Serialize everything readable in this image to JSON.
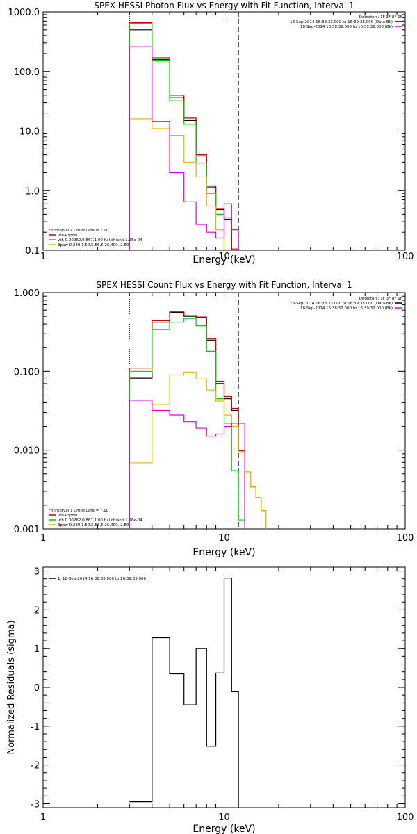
{
  "chart_data": [
    {
      "type": "line",
      "title": "SPEX HESSI Photon Flux vs Energy with Fit Function, Interval 1",
      "xlabel": "Energy (keV)",
      "ylabel": "",
      "x_scale": "log",
      "y_scale": "log",
      "xlim": [
        1,
        100
      ],
      "ylim": [
        0.1,
        1000
      ],
      "x_ticks": [
        1,
        10,
        100
      ],
      "x_tick_labels": [
        "1",
        "10",
        "100"
      ],
      "y_ticks": [
        0.1,
        1,
        10,
        100,
        1000
      ],
      "y_tick_labels": [
        "0.1",
        "1.0",
        "10.0",
        "100.0",
        "1000.0"
      ],
      "vlines": [
        {
          "x": 3.0,
          "style": "dotted"
        },
        {
          "x": 12.0,
          "style": "dashed"
        }
      ],
      "header": {
        "detectors": "Detectors: 1F 3F 8F 9F",
        "entries": [
          {
            "text": "18-Sep-2014 16:38:33.000 to 16:39:33.000 (Data-Bk)",
            "color": "#000000"
          },
          {
            "text": "18-Sep-2014 16:38:32.000 to 16:39:32.000 (Bk)",
            "color": "#e000e0"
          }
        ]
      },
      "legend": {
        "title": "Fit Interval 1    Chi-square = 7.10",
        "entries": [
          {
            "text": "vth+3pow",
            "color": "#cc0000"
          },
          {
            "text": "vth 0.00262,0.867,1.00   full chianti 1.26e-04",
            "color": "#00cc00"
          },
          {
            "text": "3pow 0.289,1.50,5.56,5.26,400.,2.50",
            "color": "#e6b800"
          }
        ]
      },
      "bin_edges": [
        3.0,
        4.0,
        5.0,
        6.0,
        7.0,
        8.0,
        9.0,
        10.0,
        11.0,
        12.0
      ],
      "series": [
        {
          "name": "Data-Bk",
          "color": "#000000",
          "values": [
            500,
            160,
            37,
            15,
            3.8,
            1.15,
            0.48,
            0.33,
            0.1
          ]
        },
        {
          "name": "vth+3pow",
          "color": "#cc0000",
          "values": [
            660,
            170,
            40,
            16.5,
            4.0,
            1.2,
            0.5,
            0.35,
            0.105
          ]
        },
        {
          "name": "vth",
          "color": "#00cc00",
          "values": [
            640,
            150,
            32,
            13,
            2.9,
            0.9,
            0.4,
            0.1,
            0.09
          ]
        },
        {
          "name": "3pow",
          "color": "#e6b800",
          "values": [
            16,
            11,
            8.5,
            3.0,
            1.7,
            0.55,
            0.22,
            0.1,
            0.1
          ]
        },
        {
          "name": "Bk",
          "color": "#e000e0",
          "values": [
            260,
            14.5,
            2.0,
            0.65,
            0.27,
            0.2,
            0.16,
            0.6,
            0.22
          ]
        }
      ]
    },
    {
      "type": "line",
      "title": "SPEX HESSI Count Flux vs Energy with Fit Function, Interval 1",
      "xlabel": "Energy (keV)",
      "ylabel": "",
      "x_scale": "log",
      "y_scale": "log",
      "xlim": [
        1,
        100
      ],
      "ylim": [
        0.001,
        1
      ],
      "x_ticks": [
        1,
        10,
        100
      ],
      "x_tick_labels": [
        "1",
        "10",
        "100"
      ],
      "y_ticks": [
        0.001,
        0.01,
        0.1,
        1
      ],
      "y_tick_labels": [
        "0.001",
        "0.010",
        "0.100",
        "1.000"
      ],
      "vlines": [
        {
          "x": 3.0,
          "style": "dotted"
        },
        {
          "x": 12.0,
          "style": "dashed"
        }
      ],
      "header": {
        "detectors": "Detectors: 1F 3F 8F 9F",
        "entries": [
          {
            "text": "18-Sep-2014 16:38:33.000 to 16:39:33.000 (Data-Bk)",
            "color": "#000000"
          },
          {
            "text": "18-Sep-2014 16:38:32.000 to 16:39:32.000 (Bk)",
            "color": "#e000e0"
          }
        ]
      },
      "legend": {
        "title": "Fit Interval 1    Chi-square = 7.10",
        "entries": [
          {
            "text": "vth+3pow",
            "color": "#cc0000"
          },
          {
            "text": "vth 0.00262,0.867,1.00   full chianti 1.26e-04",
            "color": "#00cc00"
          },
          {
            "text": "3pow 0.289,1.50,5.56,5.26,400.,2.50",
            "color": "#e6b800"
          }
        ]
      },
      "bin_edges": [
        3.0,
        4.0,
        5.0,
        6.0,
        7.0,
        8.0,
        9.0,
        10.0,
        11.0,
        12.0,
        13.0,
        14.0,
        15.0,
        16.0,
        17.0
      ],
      "series": [
        {
          "name": "Data-Bk",
          "color": "#000000",
          "values": [
            0.082,
            0.42,
            0.56,
            0.5,
            0.48,
            0.25,
            0.07,
            0.045,
            0.032,
            0.01
          ]
        },
        {
          "name": "vth+3pow",
          "color": "#cc0000",
          "values": [
            0.11,
            0.44,
            0.57,
            0.51,
            0.49,
            0.26,
            0.075,
            0.048,
            0.034,
            0.0098,
            0.0053,
            0.0034,
            0.0025,
            0.0017
          ]
        },
        {
          "name": "vth",
          "color": "#00cc00",
          "values": [
            0.1,
            0.34,
            0.42,
            0.47,
            0.38,
            0.18,
            0.045,
            0.022,
            0.0055,
            0.0013
          ]
        },
        {
          "name": "3pow",
          "color": "#e6b800",
          "values": [
            0.0069,
            0.038,
            0.09,
            0.098,
            0.08,
            0.058,
            0.042,
            0.028,
            0.02,
            0.0094,
            0.0053,
            0.0034,
            0.0025,
            0.0017
          ]
        },
        {
          "name": "Bk",
          "color": "#e000e0",
          "values": [
            0.043,
            0.032,
            0.028,
            0.023,
            0.019,
            0.015,
            0.016,
            0.02,
            0.022,
            0.022
          ]
        }
      ]
    },
    {
      "type": "line",
      "title": "",
      "xlabel": "Energy (keV)",
      "ylabel": "Normalized Residuals (sigma)",
      "x_scale": "log",
      "y_scale": "linear",
      "xlim": [
        1,
        100
      ],
      "ylim": [
        -3.1,
        3.1
      ],
      "x_ticks": [
        1,
        10,
        100
      ],
      "x_tick_labels": [
        "1",
        "10",
        "100"
      ],
      "y_ticks": [
        -3,
        -2,
        -1,
        0,
        1,
        2,
        3
      ],
      "y_tick_labels": [
        "-3",
        "-2",
        "-1",
        "0",
        "1",
        "2",
        "3"
      ],
      "legend": {
        "entries": [
          {
            "text": "1. 18-Sep-2014 16:38:33.000 to 16:39:33.000",
            "color": "#000000"
          }
        ]
      },
      "bin_edges": [
        3.0,
        4.0,
        5.0,
        6.0,
        7.0,
        8.0,
        9.0,
        10.0,
        11.0,
        12.0
      ],
      "series": [
        {
          "name": "1. 18-Sep-2014 16:38:33.000 to 16:39:33.000",
          "color": "#000000",
          "values": [
            -2.95,
            1.28,
            0.35,
            -0.45,
            1.0,
            -1.52,
            0.37,
            2.82,
            -0.1
          ]
        }
      ]
    }
  ]
}
